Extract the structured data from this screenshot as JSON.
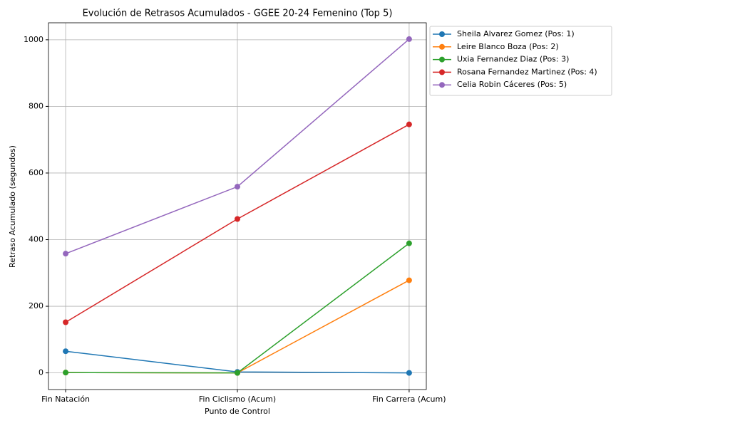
{
  "chart_data": {
    "type": "line",
    "title": "Evolución de Retrasos Acumulados - GGEE 20-24 Femenino (Top 5)",
    "x_label": "Punto de Control",
    "y_label": "Retraso Acumulado (segundos)",
    "categories": [
      "Fin Natación",
      "Fin Ciclismo (Acum)",
      "Fin Carrera (Acum)"
    ],
    "series": [
      {
        "name": "Sheila Alvarez Gomez (Pos: 1)",
        "color": "#1f77b4",
        "values": [
          65,
          3,
          0
        ]
      },
      {
        "name": "Leire Blanco Boza (Pos: 2)",
        "color": "#ff7f0e",
        "values": [
          1,
          0,
          278
        ]
      },
      {
        "name": "Uxia Fernandez Diaz (Pos: 3)",
        "color": "#2ca02c",
        "values": [
          1,
          0,
          389
        ]
      },
      {
        "name": "Rosana Fernandez Martinez (Pos: 4)",
        "color": "#d62728",
        "values": [
          152,
          462,
          746
        ]
      },
      {
        "name": "Celia Robin Cáceres (Pos: 5)",
        "color": "#9467bd",
        "values": [
          358,
          559,
          1002
        ]
      }
    ],
    "ylim": [
      -50,
      1051
    ],
    "yticks": [
      0,
      200,
      400,
      600,
      800,
      1000
    ],
    "grid": true,
    "legend": "outside-right"
  }
}
